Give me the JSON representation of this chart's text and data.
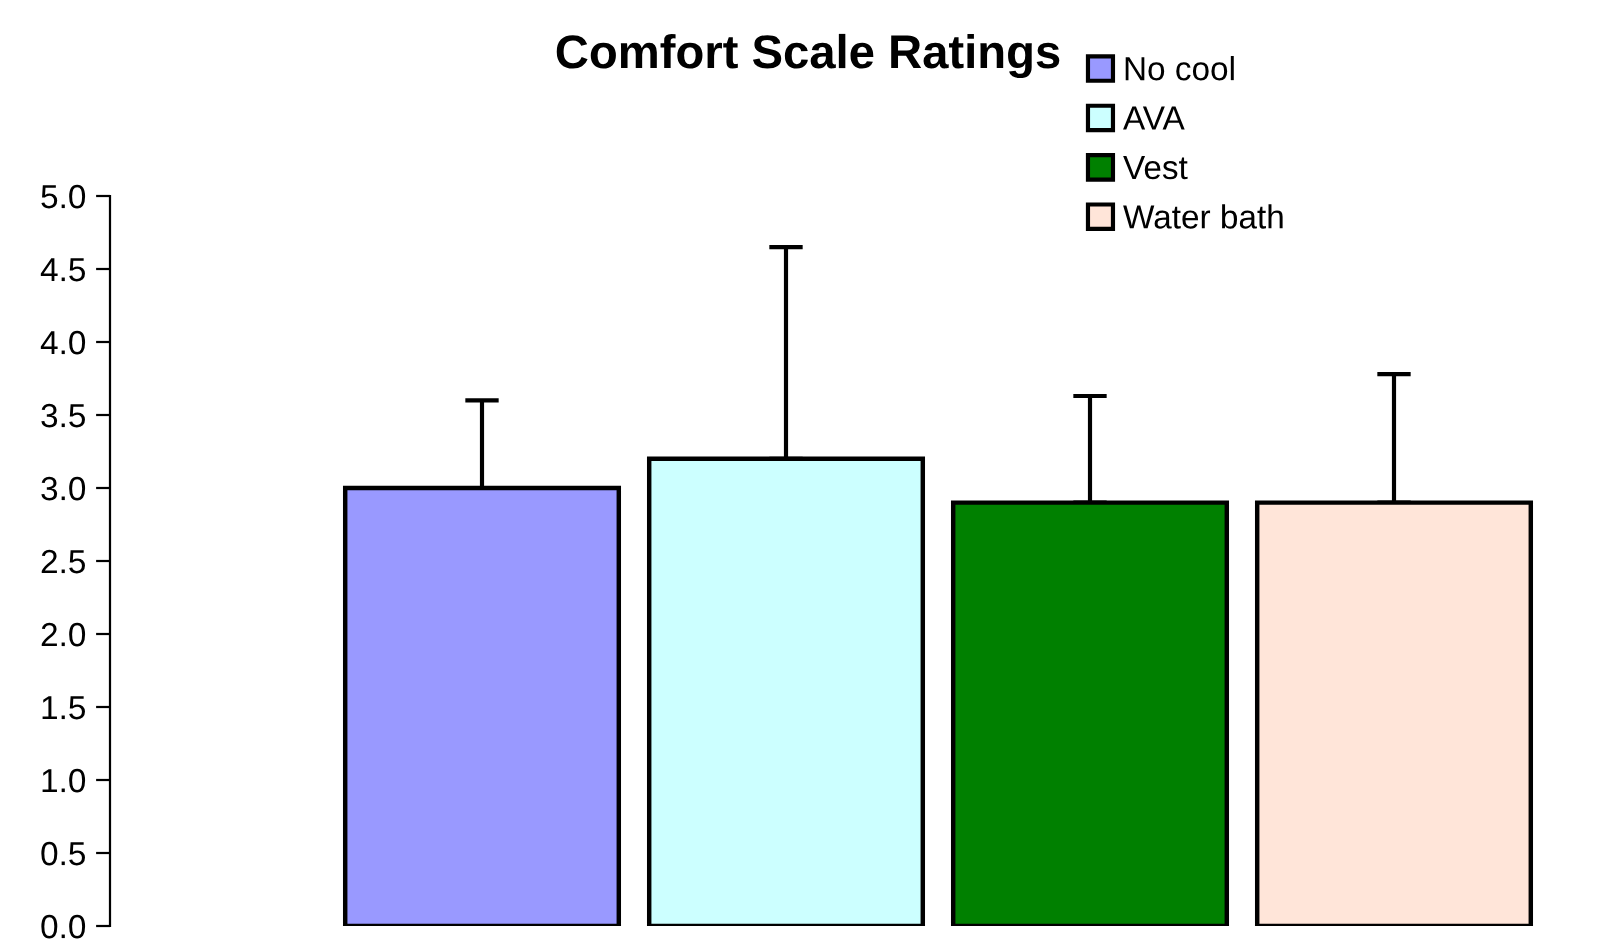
{
  "chart_data": {
    "type": "bar",
    "title": "Comfort Scale Ratings",
    "categories": [
      null
    ],
    "series": [
      {
        "name": "No cool",
        "color": "#9999ff",
        "values": [
          3.0
        ],
        "errors": [
          [
            3.0,
            3.6
          ]
        ]
      },
      {
        "name": "AVA",
        "color": "#ccffff",
        "values": [
          3.2
        ],
        "errors": [
          [
            3.2,
            4.65
          ]
        ]
      },
      {
        "name": "Vest",
        "color": "#008000",
        "values": [
          2.9
        ],
        "errors": [
          [
            2.9,
            3.63
          ]
        ]
      },
      {
        "name": "Water bath",
        "color": "#ffe5d9",
        "values": [
          2.9
        ],
        "errors": [
          [
            2.9,
            3.78
          ]
        ]
      }
    ],
    "ylim": [
      0,
      5.0
    ],
    "yticks": [
      {
        "value": 0,
        "label": "0.0"
      },
      {
        "value": 0.5,
        "label": "0.5"
      },
      {
        "value": 1.0,
        "label": "1.0"
      },
      {
        "value": 1.5,
        "label": "1.5"
      },
      {
        "value": 2.0,
        "label": "2.0"
      },
      {
        "value": 2.5,
        "label": "2.5"
      },
      {
        "value": 3.0,
        "label": "3.0"
      },
      {
        "value": 3.5,
        "label": "3.5"
      },
      {
        "value": 4.0,
        "label": "4.0"
      },
      {
        "value": 4.5,
        "label": "4.5"
      },
      {
        "value": 5.0,
        "label": "5.0"
      }
    ],
    "grid": false,
    "legend": "top right"
  }
}
